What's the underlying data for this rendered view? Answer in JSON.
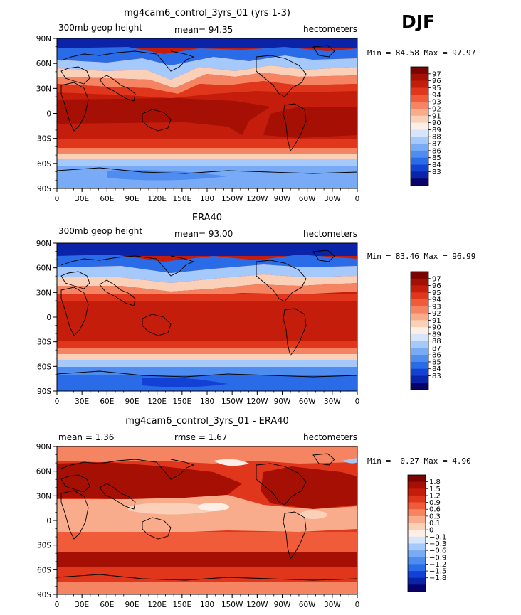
{
  "season": "DJF",
  "chart_data": [
    {
      "type": "heatmap",
      "title": "mg4cam6_control_3yrs_01 (yrs 1-3)",
      "left_label": "300mb geop height",
      "center_label": "mean=  94.35",
      "right_label": "hectometers",
      "minmax_label": "Min =  84.58 Max =  97.97",
      "x_ticks": [
        "0",
        "30E",
        "60E",
        "90E",
        "120E",
        "150E",
        "180",
        "150W",
        "120W",
        "90W",
        "60W",
        "30W",
        "0"
      ],
      "y_ticks": [
        "90N",
        "60N",
        "30N",
        "0",
        "30S",
        "60S",
        "90S"
      ],
      "colorbar": {
        "colors": [
          "#08036b",
          "#0a23a8",
          "#1341d6",
          "#2a6be7",
          "#4e8cf0",
          "#79aaf6",
          "#a6c9fb",
          "#d4e5fc",
          "#fdeee6",
          "#fbd0b9",
          "#f9ac8c",
          "#f58462",
          "#f05b39",
          "#e0361c",
          "#c51d0b",
          "#a50f04",
          "#7a0400"
        ],
        "labels": [
          "83",
          "84",
          "85",
          "86",
          "87",
          "88",
          "89",
          "90",
          "91",
          "92",
          "93",
          "94",
          "95",
          "96",
          "97"
        ]
      }
    },
    {
      "type": "heatmap",
      "title": "ERA40",
      "left_label": "300mb geop height",
      "center_label": "mean=  93.00",
      "right_label": "hectometers",
      "minmax_label": "Min =  83.46 Max =  96.99",
      "x_ticks": [
        "0",
        "30E",
        "60E",
        "90E",
        "120E",
        "150E",
        "180",
        "150W",
        "120W",
        "90W",
        "60W",
        "30W",
        "0"
      ],
      "y_ticks": [
        "90N",
        "60N",
        "30N",
        "0",
        "30S",
        "60S",
        "90S"
      ],
      "colorbar": {
        "colors": [
          "#08036b",
          "#0a23a8",
          "#1341d6",
          "#2a6be7",
          "#4e8cf0",
          "#79aaf6",
          "#a6c9fb",
          "#d4e5fc",
          "#fdeee6",
          "#fbd0b9",
          "#f9ac8c",
          "#f58462",
          "#f05b39",
          "#e0361c",
          "#c51d0b",
          "#a50f04",
          "#7a0400"
        ],
        "labels": [
          "83",
          "84",
          "85",
          "86",
          "87",
          "88",
          "89",
          "90",
          "91",
          "92",
          "93",
          "94",
          "95",
          "96",
          "97"
        ]
      }
    },
    {
      "type": "heatmap",
      "title": "mg4cam6_control_3yrs_01 - ERA40",
      "left_label": "mean =    1.36",
      "center_label": "rmse =    1.67",
      "right_label": "hectometers",
      "minmax_label": "Min =  −0.27 Max =    4.90",
      "x_ticks": [
        "0",
        "30E",
        "60E",
        "90E",
        "120E",
        "150E",
        "180",
        "150W",
        "120W",
        "90W",
        "60W",
        "30W",
        "0"
      ],
      "y_ticks": [
        "90N",
        "60N",
        "30N",
        "0",
        "30S",
        "60S",
        "90S"
      ],
      "colorbar": {
        "colors": [
          "#08036b",
          "#0a23a8",
          "#1341d6",
          "#2a6be7",
          "#4e8cf0",
          "#79aaf6",
          "#a6c9fb",
          "#d4e5fc",
          "#fdeee6",
          "#fbd0b9",
          "#f9ac8c",
          "#f58462",
          "#f05b39",
          "#e0361c",
          "#c51d0b",
          "#a50f04",
          "#7a0400"
        ],
        "labels": [
          "−1.8",
          "−1.5",
          "−1.2",
          "−0.9",
          "−0.6",
          "−0.3",
          "−0.1",
          "0",
          "0.1",
          "0.3",
          "0.6",
          "0.9",
          "1.2",
          "1.5",
          "1.8"
        ]
      }
    }
  ]
}
